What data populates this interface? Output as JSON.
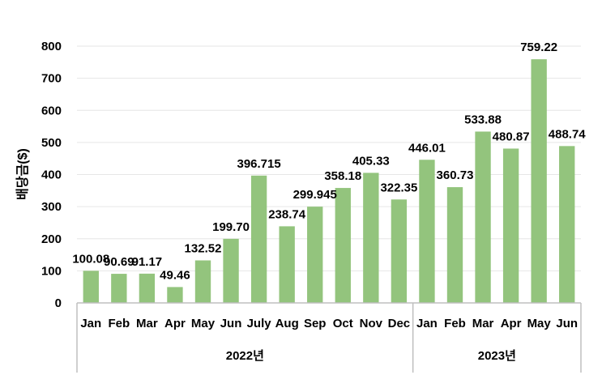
{
  "chart_data": {
    "type": "bar",
    "ylabel": "배당금($)",
    "ylim": [
      0,
      800
    ],
    "yticks": [
      0,
      100,
      200,
      300,
      400,
      500,
      600,
      700,
      800
    ],
    "grid": true,
    "bar_color": "#93c47d",
    "categories": [
      "Jan",
      "Feb",
      "Mar",
      "Apr",
      "May",
      "Jun",
      "July",
      "Aug",
      "Sep",
      "Oct",
      "Nov",
      "Dec",
      "Jan",
      "Feb",
      "Mar",
      "Apr",
      "May",
      "Jun"
    ],
    "values": [
      100.08,
      90.69,
      91.17,
      49.46,
      132.52,
      199.7,
      396.715,
      238.74,
      299.945,
      358.18,
      405.33,
      322.35,
      446.01,
      360.73,
      533.88,
      480.87,
      759.22,
      488.74
    ],
    "data_labels": [
      "100.08",
      "90.69",
      "91.17",
      "49.46",
      "132.52",
      "199.70",
      "396.715",
      "238.74",
      "299.945",
      "358.18",
      "405.33",
      "322.35",
      "446.01",
      "360.73",
      "533.88",
      "480.87",
      "759.22",
      "488.74"
    ],
    "groups": [
      {
        "label": "2022년",
        "count": 12
      },
      {
        "label": "2023년",
        "count": 6
      }
    ]
  }
}
